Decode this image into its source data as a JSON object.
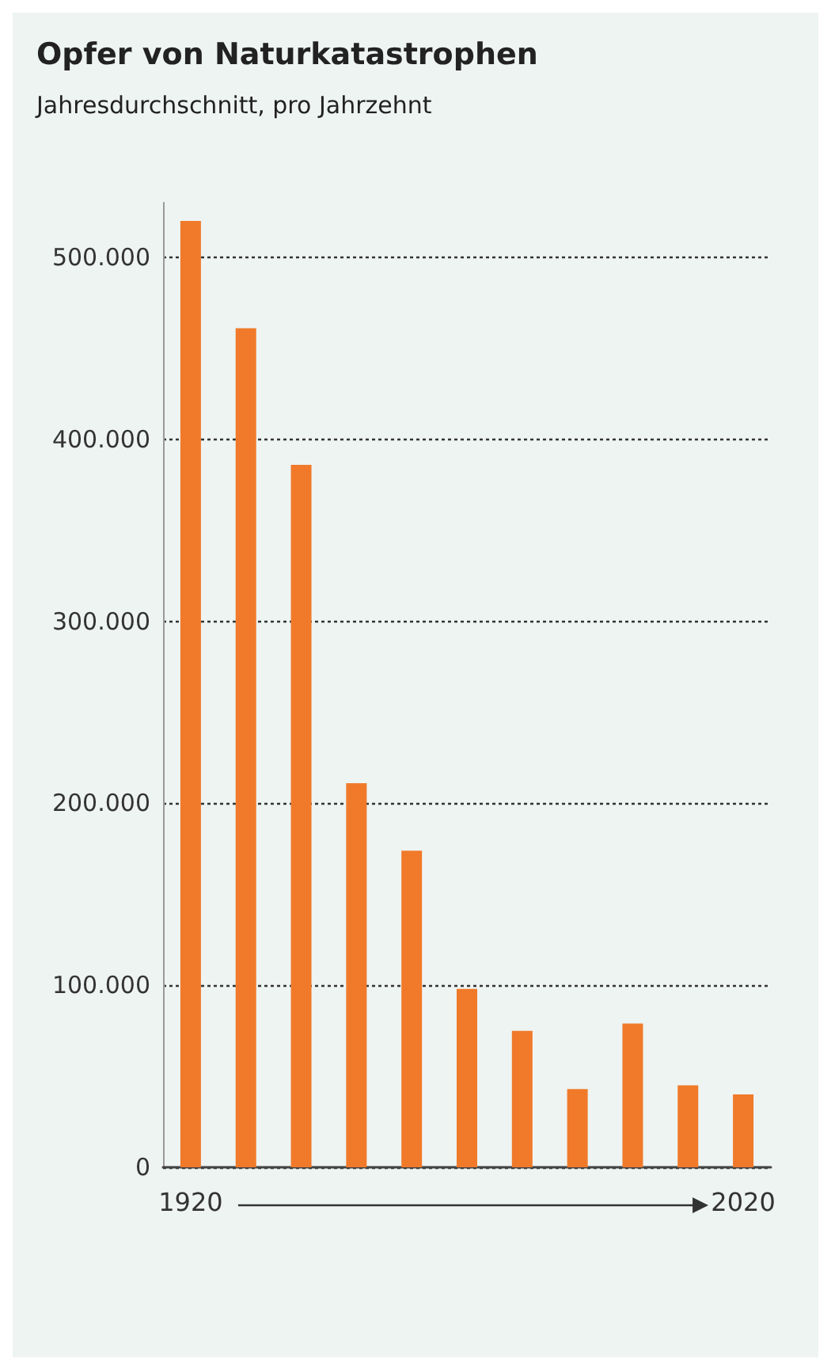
{
  "chart_data": {
    "type": "bar",
    "title": "Opfer von Naturkatastrophen",
    "subtitle": "Jahresdurchschnitt, pro Jahrzehnt",
    "categories": [
      "1920",
      null,
      null,
      null,
      null,
      null,
      null,
      null,
      null,
      null,
      "2020"
    ],
    "values": [
      520000,
      461000,
      386000,
      211000,
      174000,
      98000,
      75000,
      43000,
      79000,
      45000,
      40000
    ],
    "color": "#f07a2a",
    "ylim": [
      0,
      530000
    ],
    "yticks": [
      {
        "value": 0,
        "label": "0"
      },
      {
        "value": 100000,
        "label": "100.000"
      },
      {
        "value": 200000,
        "label": "200.000"
      },
      {
        "value": 300000,
        "label": "300.000"
      },
      {
        "value": 400000,
        "label": "400.000"
      },
      {
        "value": 500000,
        "label": "500.000"
      }
    ],
    "grid": "y"
  }
}
